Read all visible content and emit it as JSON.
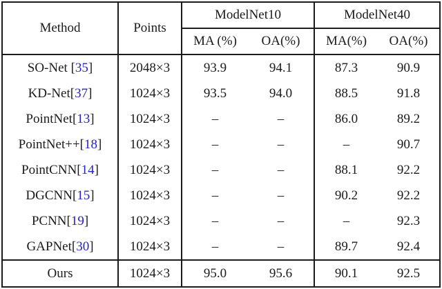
{
  "table": {
    "header": {
      "method": "Method",
      "points": "Points",
      "group1": "ModelNet10",
      "group2": "ModelNet40",
      "ma10": "MA (%)",
      "oa10": "OA(%)",
      "ma40": "MA(%)",
      "oa40": "OA(%)"
    },
    "rows": [
      {
        "name": "SO-Net ",
        "lb": "[",
        "cite": "35",
        "rb": "]",
        "points": "2048×3",
        "ma10": "93.9",
        "oa10": "94.1",
        "ma40": "87.3",
        "oa40": "90.9"
      },
      {
        "name": "KD-Net",
        "lb": "[",
        "cite": "37",
        "rb": "]",
        "points": "1024×3",
        "ma10": "93.5",
        "oa10": "94.0",
        "ma40": "88.5",
        "oa40": "91.8"
      },
      {
        "name": "PointNet",
        "lb": "[",
        "cite": "13",
        "rb": "]",
        "points": "1024×3",
        "ma10": "–",
        "oa10": "–",
        "ma40": "86.0",
        "oa40": "89.2"
      },
      {
        "name": "PointNet++",
        "lb": "[",
        "cite": "18",
        "rb": "]",
        "points": "1024×3",
        "ma10": "–",
        "oa10": "–",
        "ma40": "–",
        "oa40": "90.7"
      },
      {
        "name": "PointCNN",
        "lb": "[",
        "cite": "14",
        "rb": "]",
        "points": "1024×3",
        "ma10": "–",
        "oa10": "–",
        "ma40": "88.1",
        "oa40": "92.2"
      },
      {
        "name": "DGCNN",
        "lb": "[",
        "cite": "15",
        "rb": "]",
        "points": "1024×3",
        "ma10": "–",
        "oa10": "–",
        "ma40": "90.2",
        "oa40": "92.2"
      },
      {
        "name": "PCNN",
        "lb": "[",
        "cite": "19",
        "rb": "]",
        "points": "1024×3",
        "ma10": "–",
        "oa10": "–",
        "ma40": "–",
        "oa40": "92.3"
      },
      {
        "name": "GAPNet",
        "lb": "[",
        "cite": "30",
        "rb": "]",
        "points": "1024×3",
        "ma10": "–",
        "oa10": "–",
        "ma40": "89.7",
        "oa40": "92.4"
      }
    ],
    "ours": {
      "name": "Ours",
      "points": "1024×3",
      "ma10": "95.0",
      "oa10": "95.6",
      "ma40": "90.1",
      "oa40": "92.5"
    }
  },
  "colors": {
    "citation_blue": "#2020e0",
    "line": "#1a1a1a",
    "text": "#1a1a1a",
    "background": "#ffffff"
  }
}
